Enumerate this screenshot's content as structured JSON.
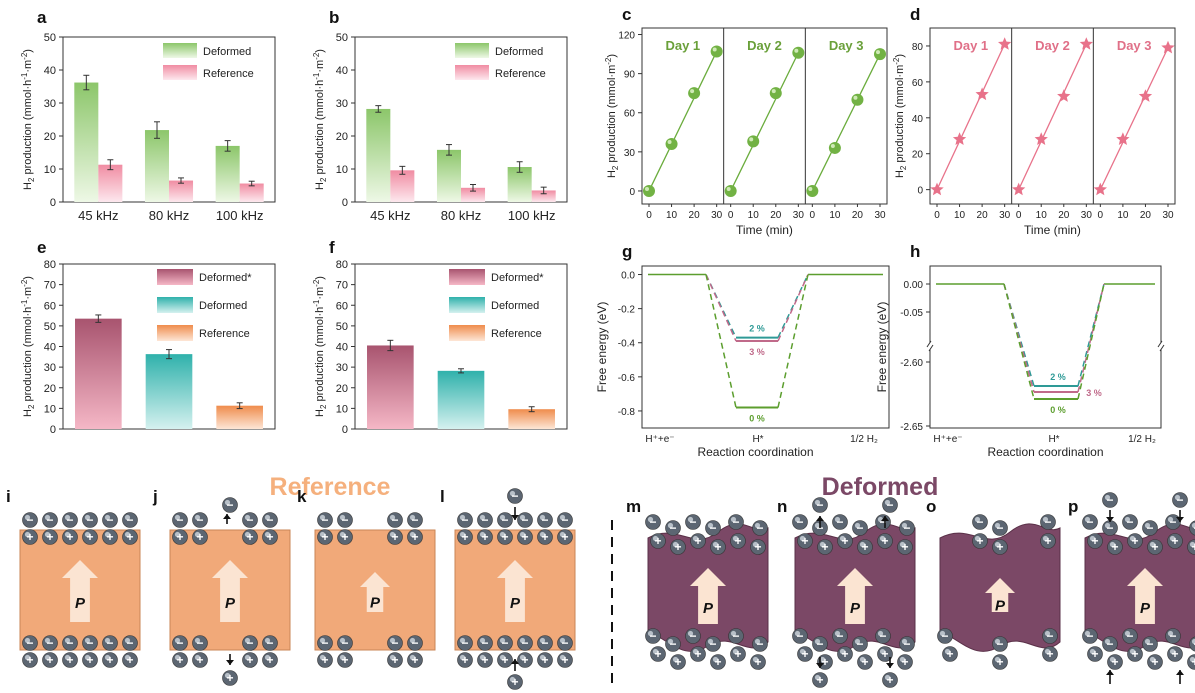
{
  "colors": {
    "deformed_green": "#8cc66a",
    "reference_pink": "#f08ca2",
    "deformed_star_dark": "#b14e72",
    "deformed_teal": "#3bb7b2",
    "reference_orange": "#f19a5e",
    "line_green": "#6aac3c",
    "star_pink": "#e8728a",
    "deformed_purple": "#7b4866",
    "reference_peach": "#f1a979",
    "arrow_fill": "#fbe4d2",
    "title_reference": "#f5b07d",
    "title_deformed": "#7b4866",
    "gap_teal": "#2e9a96",
    "gap_pink": "#c06a8a",
    "gap_green": "#5c9e2e"
  },
  "chart_data": [
    {
      "panel": "a",
      "type": "bar",
      "categories": [
        "45 kHz",
        "80 kHz",
        "100 kHz"
      ],
      "series": [
        {
          "name": "Deformed",
          "values": [
            36.2,
            21.8,
            17.0
          ],
          "errors": [
            2.2,
            2.5,
            1.6
          ]
        },
        {
          "name": "Reference",
          "values": [
            11.3,
            6.5,
            5.6
          ],
          "errors": [
            1.5,
            0.8,
            0.7
          ]
        }
      ],
      "ylabel": "H2 production (mmol·h-1·m-2)",
      "ylim": [
        0,
        50
      ],
      "yticks": [
        0,
        10,
        20,
        30,
        40,
        50
      ]
    },
    {
      "panel": "b",
      "type": "bar",
      "categories": [
        "45 kHz",
        "80 kHz",
        "100 kHz"
      ],
      "series": [
        {
          "name": "Deformed",
          "values": [
            28.2,
            15.8,
            10.6
          ],
          "errors": [
            1.0,
            1.6,
            1.6
          ]
        },
        {
          "name": "Reference",
          "values": [
            9.6,
            4.3,
            3.5
          ],
          "errors": [
            1.2,
            1.0,
            1.0
          ]
        }
      ],
      "ylabel": "H2 production (mmol·h-1·m-2)",
      "ylim": [
        0,
        50
      ],
      "yticks": [
        0,
        10,
        20,
        30,
        40,
        50
      ]
    },
    {
      "panel": "c",
      "type": "scatter",
      "segments": [
        "Day 1",
        "Day 2",
        "Day 3"
      ],
      "x": [
        0,
        10,
        20,
        30
      ],
      "series": [
        {
          "values": [
            0,
            36,
            75,
            107
          ]
        },
        {
          "values": [
            0,
            38,
            75,
            106
          ]
        },
        {
          "values": [
            0,
            33,
            70,
            105
          ]
        }
      ],
      "xlabel": "Time (min)",
      "ylabel": "H2 production (mmol·m-2)",
      "xlim": [
        0,
        30
      ],
      "ylim": [
        -10,
        125
      ],
      "yticks": [
        0,
        30,
        60,
        90,
        120
      ],
      "xticks": [
        0,
        10,
        20,
        30
      ]
    },
    {
      "panel": "d",
      "type": "scatter",
      "segments": [
        "Day 1",
        "Day 2",
        "Day 3"
      ],
      "x": [
        0,
        10,
        20,
        30
      ],
      "series": [
        {
          "values": [
            0,
            28,
            53,
            81
          ]
        },
        {
          "values": [
            0,
            28,
            52,
            81
          ]
        },
        {
          "values": [
            0,
            28,
            52,
            79
          ]
        }
      ],
      "xlabel": "Time (min)",
      "ylabel": "H2 production (mmol·m-2)",
      "xlim": [
        0,
        30
      ],
      "ylim": [
        -8,
        90
      ],
      "yticks": [
        0,
        20,
        40,
        60,
        80
      ],
      "xticks": [
        0,
        10,
        20,
        30
      ]
    },
    {
      "panel": "e",
      "type": "bar",
      "categories": [
        "Deformed*",
        "Deformed",
        "Reference"
      ],
      "values": [
        53.5,
        36.3,
        11.3
      ],
      "errors": [
        1.8,
        2.2,
        1.4
      ],
      "legend": [
        "Deformed*",
        "Deformed",
        "Reference"
      ],
      "ylabel": "H2 production (mmol·h-1·m-2)",
      "ylim": [
        0,
        80
      ],
      "yticks": [
        0,
        10,
        20,
        30,
        40,
        50,
        60,
        70,
        80
      ]
    },
    {
      "panel": "f",
      "type": "bar",
      "categories": [
        "Deformed*",
        "Deformed",
        "Reference"
      ],
      "values": [
        40.5,
        28.2,
        9.6
      ],
      "errors": [
        2.5,
        1.0,
        1.2
      ],
      "legend": [
        "Deformed*",
        "Deformed",
        "Reference"
      ],
      "ylabel": "H2 production (mmol·h-1·m-2)",
      "ylim": [
        0,
        80
      ],
      "yticks": [
        0,
        10,
        20,
        30,
        40,
        50,
        60,
        70,
        80
      ]
    },
    {
      "panel": "g",
      "type": "line",
      "categories": [
        "H+ + e-",
        "H*",
        "1/2 H2"
      ],
      "series": [
        {
          "name": "2 %",
          "value": -0.37
        },
        {
          "name": "3 %",
          "value": -0.39
        },
        {
          "name": "0 %",
          "value": -0.78
        }
      ],
      "xlabel": "Reaction coordination",
      "ylabel": "Free energy (eV)",
      "ylim": [
        -0.9,
        0.05
      ],
      "yticks": [
        "0.0",
        "-0.2",
        "-0.4",
        "-0.6",
        "-0.8"
      ]
    },
    {
      "panel": "h",
      "type": "line",
      "categories": [
        "H+ + e-",
        "H*",
        "1/2 H2"
      ],
      "series": [
        {
          "name": "2 %",
          "value": -2.62
        },
        {
          "name": "3 %",
          "value": -2.625
        },
        {
          "name": "0 %",
          "value": -2.63
        }
      ],
      "xlabel": "Reaction coordination",
      "ylabel": "Free energy (eV)",
      "yticks": [
        "0.00",
        "-0.05",
        "-2.60",
        "-2.65"
      ]
    }
  ],
  "schematic": {
    "reference_title": "Reference",
    "deformed_title": "Deformed",
    "panels": [
      "i",
      "j",
      "k",
      "l",
      "m",
      "n",
      "o",
      "p"
    ],
    "dipole_label": "P",
    "minus_sign": "−",
    "plus_sign": "+"
  }
}
